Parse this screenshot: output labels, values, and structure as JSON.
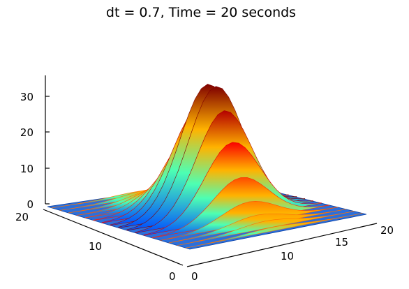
{
  "chart_data": {
    "type": "surface",
    "title": "dt = 0.7, Time = 20 seconds",
    "colormap": "jet",
    "x_ticks": [
      "0",
      "10",
      "15",
      "20"
    ],
    "y_ticks": [
      "0",
      "10",
      "20"
    ],
    "z_ticks": [
      "0",
      "10",
      "20",
      "30"
    ],
    "xlim": [
      0,
      20
    ],
    "ylim": [
      0,
      20
    ],
    "zlim": [
      0,
      35
    ],
    "peak_value": 35,
    "ridge_count": 17,
    "wave_peaks": [
      {
        "ridge": 1,
        "height": 1
      },
      {
        "ridge": 2,
        "height": 2
      },
      {
        "ridge": 3,
        "height": 3
      },
      {
        "ridge": 4,
        "height": 5
      },
      {
        "ridge": 5,
        "height": 8
      },
      {
        "ridge": 6,
        "height": 13
      },
      {
        "ridge": 7,
        "height": 20
      },
      {
        "ridge": 8,
        "height": 28
      },
      {
        "ridge": 9,
        "height": 35
      },
      {
        "ridge": 10,
        "height": 35
      },
      {
        "ridge": 11,
        "height": 29
      },
      {
        "ridge": 12,
        "height": 21
      },
      {
        "ridge": 13,
        "height": 12
      },
      {
        "ridge": 14,
        "height": 6
      },
      {
        "ridge": 15,
        "height": 3
      },
      {
        "ridge": 16,
        "height": 2
      },
      {
        "ridge": 17,
        "height": 1
      }
    ]
  }
}
